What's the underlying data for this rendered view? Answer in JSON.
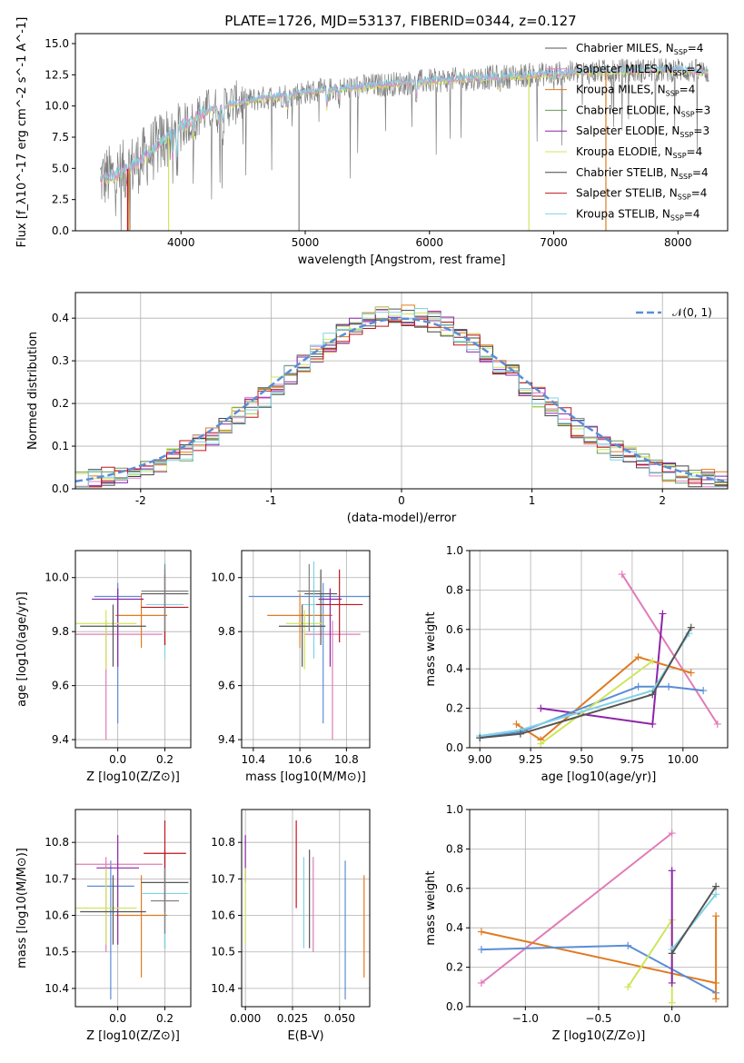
{
  "figure": {
    "title": "PLATE=1726, MJD=53137, FIBERID=0344, z=0.127"
  },
  "colors": {
    "chabrier_miles": "#555555",
    "salpeter_miles": "#e17fd0",
    "kroupa_miles": "#e07b1f",
    "chabrier_elodie": "#6b9a5a",
    "salpeter_elodie": "#8e24aa",
    "kroupa_elodie": "#cde65c",
    "chabrier_stelib": "#444444",
    "salpeter_stelib": "#c0151b",
    "kroupa_stelib": "#7fd3e6",
    "gauss": "#5b8dd6",
    "blue": "#5b8dd6",
    "pink": "#e07bb8",
    "orange": "#e07b1f",
    "purple": "#8e24aa",
    "dark": "#555555",
    "yellow": "#cde65c",
    "cyan": "#7fd3e6",
    "gray": "#808080",
    "red": "#c0151b"
  },
  "chart_data": [
    {
      "id": "spectrum",
      "type": "line",
      "xlabel": "wavelength [Angstrom, rest frame]",
      "ylabel": "Flux [f_λ10^-17 erg cm^-2 s^-1 A^-1]",
      "xlim": [
        3150,
        8400
      ],
      "ylim": [
        0,
        15.8
      ],
      "xticks": [
        4000,
        5000,
        6000,
        7000,
        8000
      ],
      "yticks": [
        "0.0",
        "2.5",
        "5.0",
        "7.5",
        "10.0",
        "12.5",
        "15.0"
      ],
      "grid": false,
      "legend_position": "top-right",
      "legend": [
        {
          "label": "Chabrier MILES, N",
          "sub": "SSP",
          "suffix": "=4",
          "color_key": "chabrier_miles"
        },
        {
          "label": "Salpeter MILES, N",
          "sub": "SSP",
          "suffix": "=2",
          "color_key": "salpeter_miles"
        },
        {
          "label": "Kroupa MILES, N",
          "sub": "SSP",
          "suffix": "=4",
          "color_key": "kroupa_miles"
        },
        {
          "label": "Chabrier ELODIE, N",
          "sub": "SSP",
          "suffix": "=3",
          "color_key": "chabrier_elodie"
        },
        {
          "label": "Salpeter ELODIE, N",
          "sub": "SSP",
          "suffix": "=3",
          "color_key": "salpeter_elodie"
        },
        {
          "label": "Kroupa ELODIE, N",
          "sub": "SSP",
          "suffix": "=4",
          "color_key": "kroupa_elodie"
        },
        {
          "label": "Chabrier STELIB, N",
          "sub": "SSP",
          "suffix": "=4",
          "color_key": "chabrier_stelib"
        },
        {
          "label": "Salpeter STELIB, N",
          "sub": "SSP",
          "suffix": "=4",
          "color_key": "salpeter_stelib"
        },
        {
          "label": "Kroupa STELIB, N",
          "sub": "SSP",
          "suffix": "=4",
          "color_key": "kroupa_stelib"
        }
      ],
      "continuum": {
        "x": [
          3350,
          3500,
          3700,
          3900,
          4000,
          4200,
          4500,
          5000,
          5500,
          6000,
          6500,
          7000,
          7500,
          8000,
          8250
        ],
        "y": [
          4.2,
          4.5,
          5.8,
          7.6,
          8.3,
          9.6,
          10.4,
          11.1,
          11.6,
          12.0,
          12.3,
          12.6,
          12.8,
          12.9,
          12.7
        ]
      },
      "dips": [
        {
          "x": 3570,
          "color_key": "salpeter_stelib"
        },
        {
          "x": 3580,
          "color_key": "kroupa_miles"
        },
        {
          "x": 3900,
          "color_key": "kroupa_elodie"
        },
        {
          "x": 4950,
          "color_key": "gray"
        },
        {
          "x": 6800,
          "color_key": "kroupa_elodie"
        },
        {
          "x": 7420,
          "color_key": "kroupa_miles"
        }
      ]
    },
    {
      "id": "residuals",
      "type": "bar",
      "xlabel": "(data-model)/error",
      "ylabel": "Normed distribution",
      "xlim": [
        -2.5,
        2.5
      ],
      "ylim": [
        0,
        0.46
      ],
      "xticks": [
        -2,
        -1,
        0,
        1,
        2
      ],
      "yticks": [
        "0.0",
        "0.1",
        "0.2",
        "0.3",
        "0.4"
      ],
      "grid": true,
      "legend_position": "top-right",
      "gauss_label": "𝒩(0, 1)",
      "bin_width": 0.1,
      "bin_start": -2.5,
      "series_color_keys": [
        "chabrier_miles",
        "salpeter_miles",
        "kroupa_miles",
        "chabrier_elodie",
        "salpeter_elodie",
        "kroupa_elodie",
        "chabrier_stelib",
        "salpeter_stelib",
        "kroupa_stelib"
      ]
    },
    {
      "id": "age_vs_z",
      "type": "scatter",
      "xlabel": "Z [log10(Z/Z⊙)]",
      "ylabel": "age [log10(age/yr)]",
      "xlim": [
        -0.18,
        0.31
      ],
      "ylim": [
        9.37,
        10.1
      ],
      "xticks": [
        0.0,
        0.2
      ],
      "xticklabels": [
        "0.0",
        "0.2"
      ],
      "yticks": [
        9.4,
        9.6,
        9.8,
        10.0
      ],
      "yticklabels": [
        "9.4",
        "9.6",
        "9.8",
        "10.0"
      ],
      "grid": true,
      "points": [
        {
          "x": 0.0,
          "y": 9.93,
          "xerr": 0.1,
          "ylo": 9.46,
          "yhi": 9.98,
          "color_key": "blue"
        },
        {
          "x": -0.05,
          "y": 9.79,
          "xerr": 0.24,
          "ylo": 9.4,
          "yhi": 9.84,
          "color_key": "pink"
        },
        {
          "x": 0.1,
          "y": 9.86,
          "xerr": 0.11,
          "ylo": 9.74,
          "yhi": 9.94,
          "color_key": "orange"
        },
        {
          "x": 0.0,
          "y": 9.92,
          "xerr": 0.11,
          "ylo": 9.67,
          "yhi": 9.96,
          "color_key": "purple"
        },
        {
          "x": 0.2,
          "y": 9.94,
          "xerr": 0.1,
          "ylo": 9.75,
          "yhi": 10.03,
          "color_key": "dark"
        },
        {
          "x": -0.05,
          "y": 9.83,
          "xerr": 0.13,
          "ylo": 9.66,
          "yhi": 9.88,
          "color_key": "yellow"
        },
        {
          "x": 0.2,
          "y": 9.9,
          "xerr": 0.08,
          "ylo": 9.7,
          "yhi": 10.06,
          "color_key": "cyan"
        },
        {
          "x": -0.02,
          "y": 9.82,
          "xerr": 0.14,
          "ylo": 9.67,
          "yhi": 9.9,
          "color_key": "dark"
        },
        {
          "x": 0.2,
          "y": 9.89,
          "xerr": 0.1,
          "ylo": 9.75,
          "yhi": 10.01,
          "color_key": "red"
        },
        {
          "x": 0.2,
          "y": 9.95,
          "xerr": 0.1,
          "ylo": 9.8,
          "yhi": 10.05,
          "color_key": "gray"
        }
      ]
    },
    {
      "id": "age_vs_mass",
      "type": "scatter",
      "xlabel": "mass [log10(M/M⊙)]",
      "ylabel": "",
      "xlim": [
        10.35,
        10.9
      ],
      "ylim": [
        9.37,
        10.1
      ],
      "xticks": [
        10.4,
        10.6,
        10.8
      ],
      "xticklabels": [
        "10.4",
        "10.6",
        "10.8"
      ],
      "yticks": [
        9.4,
        9.6,
        9.8,
        10.0
      ],
      "yticklabels": [
        "9.4",
        "9.6",
        "9.8",
        "10.0"
      ],
      "grid": true,
      "points": [
        {
          "x": 10.7,
          "y": 9.93,
          "xerr": 0.32,
          "ylo": 9.46,
          "yhi": 9.98,
          "color_key": "blue"
        },
        {
          "x": 10.74,
          "y": 9.79,
          "xerr": 0.12,
          "ylo": 9.4,
          "yhi": 9.84,
          "color_key": "pink"
        },
        {
          "x": 10.6,
          "y": 9.86,
          "xerr": 0.14,
          "ylo": 9.74,
          "yhi": 9.94,
          "color_key": "orange"
        },
        {
          "x": 10.73,
          "y": 9.92,
          "xerr": 0.05,
          "ylo": 9.67,
          "yhi": 9.96,
          "color_key": "purple"
        },
        {
          "x": 10.69,
          "y": 9.94,
          "xerr": 0.07,
          "ylo": 9.75,
          "yhi": 10.03,
          "color_key": "dark"
        },
        {
          "x": 10.62,
          "y": 9.83,
          "xerr": 0.08,
          "ylo": 9.66,
          "yhi": 9.88,
          "color_key": "yellow"
        },
        {
          "x": 10.66,
          "y": 9.9,
          "xerr": 0.05,
          "ylo": 9.7,
          "yhi": 10.06,
          "color_key": "cyan"
        },
        {
          "x": 10.61,
          "y": 9.82,
          "xerr": 0.1,
          "ylo": 9.67,
          "yhi": 9.9,
          "color_key": "dark"
        },
        {
          "x": 10.77,
          "y": 9.9,
          "xerr": 0.1,
          "ylo": 9.76,
          "yhi": 10.03,
          "color_key": "red"
        },
        {
          "x": 10.64,
          "y": 9.95,
          "xerr": 0.05,
          "ylo": 9.8,
          "yhi": 10.05,
          "color_key": "gray"
        }
      ]
    },
    {
      "id": "mass_weight_vs_age",
      "type": "line",
      "xlabel": "age [log10(age/yr)]",
      "ylabel": "mass weight",
      "xlim": [
        8.95,
        10.22
      ],
      "ylim": [
        0,
        1
      ],
      "xticks": [
        9.0,
        9.25,
        9.5,
        9.75,
        10.0
      ],
      "xticklabels": [
        "9.00",
        "9.25",
        "9.50",
        "9.75",
        "10.00"
      ],
      "yticks": [
        0,
        0.2,
        0.4,
        0.6,
        0.8,
        1.0
      ],
      "yticklabels": [
        "0.0",
        "0.2",
        "0.4",
        "0.6",
        "0.8",
        "1.0"
      ],
      "grid": true,
      "series": [
        {
          "color_key": "pink",
          "x": [
            9.7,
            10.17
          ],
          "y": [
            0.88,
            0.12
          ]
        },
        {
          "color_key": "purple",
          "x": [
            9.3,
            9.85,
            9.9
          ],
          "y": [
            0.2,
            0.12,
            0.68
          ]
        },
        {
          "color_key": "orange",
          "x": [
            9.18,
            9.3,
            9.78,
            10.04
          ],
          "y": [
            0.12,
            0.04,
            0.46,
            0.38
          ]
        },
        {
          "color_key": "blue",
          "x": [
            9.0,
            9.2,
            9.78,
            9.93,
            10.1
          ],
          "y": [
            0.05,
            0.08,
            0.31,
            0.31,
            0.29
          ]
        },
        {
          "color_key": "yellow",
          "x": [
            9.3,
            9.85
          ],
          "y": [
            0.02,
            0.44
          ]
        },
        {
          "color_key": "cyan",
          "x": [
            9.0,
            9.2,
            9.85,
            10.03
          ],
          "y": [
            0.06,
            0.09,
            0.29,
            0.58
          ]
        },
        {
          "color_key": "dark",
          "x": [
            9.0,
            9.2,
            9.85,
            10.04
          ],
          "y": [
            0.05,
            0.07,
            0.27,
            0.61
          ]
        }
      ]
    },
    {
      "id": "mass_vs_z",
      "type": "scatter",
      "xlabel": "Z [log10(Z/Z⊙)]",
      "ylabel": "mass [log10(M/M⊙)]",
      "xlim": [
        -0.18,
        0.31
      ],
      "ylim": [
        10.35,
        10.89
      ],
      "xticks": [
        0.0,
        0.2
      ],
      "xticklabels": [
        "0.0",
        "0.2"
      ],
      "yticks": [
        10.4,
        10.5,
        10.6,
        10.7,
        10.8
      ],
      "yticklabels": [
        "10.4",
        "10.5",
        "10.6",
        "10.7",
        "10.8"
      ],
      "grid": true,
      "points": [
        {
          "x": -0.03,
          "y": 10.68,
          "xerr": 0.1,
          "ylo": 10.37,
          "yhi": 10.75,
          "color_key": "blue"
        },
        {
          "x": -0.05,
          "y": 10.74,
          "xerr": 0.24,
          "ylo": 10.5,
          "yhi": 10.76,
          "color_key": "pink"
        },
        {
          "x": 0.1,
          "y": 10.6,
          "xerr": 0.11,
          "ylo": 10.43,
          "yhi": 10.71,
          "color_key": "orange"
        },
        {
          "x": 0.0,
          "y": 10.73,
          "xerr": 0.09,
          "ylo": 10.52,
          "yhi": 10.82,
          "color_key": "purple"
        },
        {
          "x": 0.2,
          "y": 10.69,
          "xerr": 0.1,
          "ylo": 10.51,
          "yhi": 10.78,
          "color_key": "dark"
        },
        {
          "x": -0.05,
          "y": 10.62,
          "xerr": 0.13,
          "ylo": 10.52,
          "yhi": 10.73,
          "color_key": "yellow"
        },
        {
          "x": 0.2,
          "y": 10.66,
          "xerr": 0.1,
          "ylo": 10.51,
          "yhi": 10.77,
          "color_key": "cyan"
        },
        {
          "x": -0.02,
          "y": 10.61,
          "xerr": 0.14,
          "ylo": 10.52,
          "yhi": 10.71,
          "color_key": "dark"
        },
        {
          "x": 0.2,
          "y": 10.77,
          "xerr": 0.09,
          "ylo": 10.61,
          "yhi": 10.86,
          "color_key": "red"
        },
        {
          "x": 0.2,
          "y": 10.64,
          "xerr": 0.06,
          "ylo": 10.55,
          "yhi": 10.73,
          "color_key": "gray"
        }
      ]
    },
    {
      "id": "mass_vs_ebv",
      "type": "scatter",
      "xlabel": "E(B-V)",
      "ylabel": "",
      "xlim": [
        -0.002,
        0.066
      ],
      "ylim": [
        10.35,
        10.89
      ],
      "xticks": [
        0.0,
        0.025,
        0.05
      ],
      "xticklabels": [
        "0.000",
        "0.025",
        "0.050"
      ],
      "yticks": [
        10.4,
        10.5,
        10.6,
        10.7,
        10.8
      ],
      "yticklabels": [
        "10.4",
        "10.5",
        "10.6",
        "10.7",
        "10.8"
      ],
      "grid": true,
      "points": [
        {
          "x": 0.0,
          "ylo": 10.69,
          "yhi": 10.82,
          "color_key": "purple"
        },
        {
          "x": 0.0,
          "ylo": 10.52,
          "yhi": 10.73,
          "color_key": "yellow"
        },
        {
          "x": 0.027,
          "ylo": 10.62,
          "yhi": 10.86,
          "color_key": "red"
        },
        {
          "x": 0.031,
          "ylo": 10.51,
          "yhi": 10.76,
          "color_key": "cyan"
        },
        {
          "x": 0.034,
          "ylo": 10.51,
          "yhi": 10.78,
          "color_key": "dark"
        },
        {
          "x": 0.036,
          "ylo": 10.5,
          "yhi": 10.76,
          "color_key": "pink"
        },
        {
          "x": 0.053,
          "ylo": 10.37,
          "yhi": 10.75,
          "color_key": "blue"
        },
        {
          "x": 0.063,
          "ylo": 10.43,
          "yhi": 10.71,
          "color_key": "orange"
        }
      ]
    },
    {
      "id": "mass_weight_vs_z",
      "type": "line",
      "xlabel": "Z [log10(Z/Z⊙)]",
      "ylabel": "mass weight",
      "xlim": [
        -1.38,
        0.38
      ],
      "ylim": [
        0,
        1
      ],
      "xticks": [
        -1.0,
        -0.5,
        0.0
      ],
      "xticklabels": [
        "−1.0",
        "−0.5",
        "0.0"
      ],
      "yticks": [
        0,
        0.2,
        0.4,
        0.6,
        0.8,
        1.0
      ],
      "yticklabels": [
        "0.0",
        "0.2",
        "0.4",
        "0.6",
        "0.8",
        "1.0"
      ],
      "grid": true,
      "series": [
        {
          "color_key": "pink",
          "x": [
            -1.3,
            0.0
          ],
          "y": [
            0.12,
            0.88
          ]
        },
        {
          "color_key": "orange",
          "x": [
            -1.3,
            0.3
          ],
          "y": [
            0.38,
            0.12
          ]
        },
        {
          "color_key": "blue",
          "x": [
            -1.3,
            -0.3,
            0.3
          ],
          "y": [
            0.29,
            0.31,
            0.07
          ]
        },
        {
          "color_key": "yellow",
          "x": [
            -0.3,
            0.0,
            0.0
          ],
          "y": [
            0.1,
            0.44,
            0.02
          ]
        },
        {
          "color_key": "purple",
          "x": [
            0.0,
            0.0
          ],
          "y": [
            0.12,
            0.69
          ]
        },
        {
          "color_key": "cyan",
          "x": [
            0.0,
            0.3
          ],
          "y": [
            0.29,
            0.57
          ]
        },
        {
          "color_key": "dark",
          "x": [
            0.0,
            0.3
          ],
          "y": [
            0.27,
            0.61
          ]
        },
        {
          "color_key": "orange",
          "x": [
            0.3,
            0.3
          ],
          "y": [
            0.04,
            0.46
          ]
        }
      ]
    }
  ]
}
